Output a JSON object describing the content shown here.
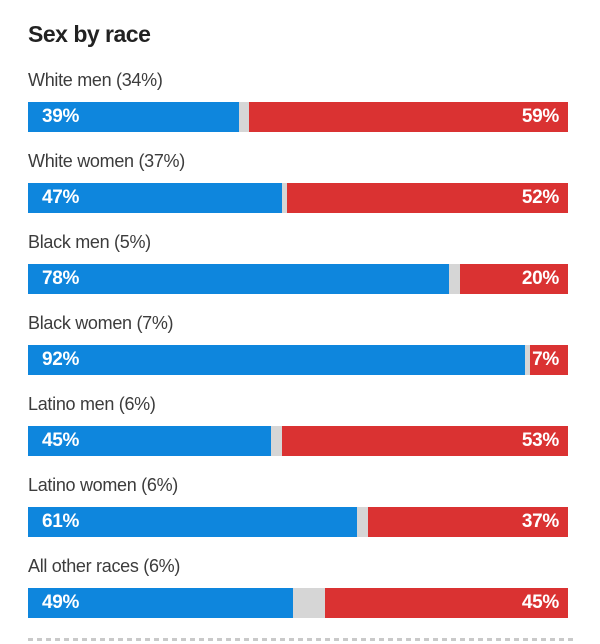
{
  "title": "Sex by race",
  "colors": {
    "blue_segment": "#0e86dd",
    "red_segment": "#da3232",
    "track_gap": "#d6d6d6",
    "title_text": "#222222",
    "label_text": "#3c3c3c"
  },
  "chart_data": {
    "type": "bar",
    "orientation": "horizontal-stacked",
    "title": "Sex by race",
    "categories": [
      "White men (34%)",
      "White women (37%)",
      "Black men (5%)",
      "Black women (7%)",
      "Latino men (6%)",
      "Latino women (6%)",
      "All other races (6%)"
    ],
    "series": [
      {
        "name": "blue",
        "color": "#0e86dd",
        "values": [
          39,
          47,
          78,
          92,
          45,
          61,
          49
        ]
      },
      {
        "name": "red",
        "color": "#da3232",
        "values": [
          59,
          52,
          20,
          7,
          53,
          37,
          45
        ]
      }
    ],
    "value_suffix": "%",
    "xlim": [
      0,
      100
    ],
    "grid": false,
    "legend": "none",
    "value_labels": "inside-segments"
  },
  "rows": [
    {
      "label": "White men (34%)",
      "blue_pct": 39,
      "red_pct": 59,
      "blue_text": "39%",
      "red_text": "59%"
    },
    {
      "label": "White women (37%)",
      "blue_pct": 47,
      "red_pct": 52,
      "blue_text": "47%",
      "red_text": "52%"
    },
    {
      "label": "Black men (5%)",
      "blue_pct": 78,
      "red_pct": 20,
      "blue_text": "78%",
      "red_text": "20%"
    },
    {
      "label": "Black women (7%)",
      "blue_pct": 92,
      "red_pct": 7,
      "blue_text": "92%",
      "red_text": "7%"
    },
    {
      "label": "Latino men (6%)",
      "blue_pct": 45,
      "red_pct": 53,
      "blue_text": "45%",
      "red_text": "53%"
    },
    {
      "label": "Latino women (6%)",
      "blue_pct": 61,
      "red_pct": 37,
      "blue_text": "61%",
      "red_text": "37%"
    },
    {
      "label": "All other races (6%)",
      "blue_pct": 49,
      "red_pct": 45,
      "blue_text": "49%",
      "red_text": "45%"
    }
  ]
}
